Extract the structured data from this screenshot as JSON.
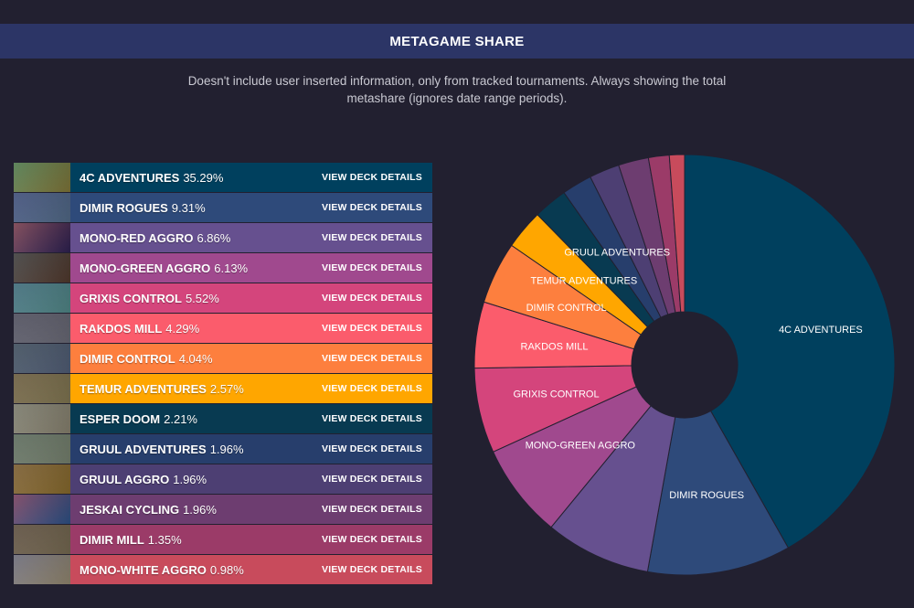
{
  "header": {
    "title": "METAGAME SHARE"
  },
  "subtitle": {
    "line1": "Doesn't include user inserted information, only from tracked tournaments. Always showing the total",
    "line2": "metashare (ignores date range periods)."
  },
  "view_label": "VIEW DECK DETAILS",
  "decks": [
    {
      "name": "4C ADVENTURES",
      "share": "35.29%",
      "color": "#00405e",
      "thumb": [
        "#3a6a3a",
        "#a89a4a"
      ]
    },
    {
      "name": "DIMIR ROGUES",
      "share": "9.31%",
      "color": "#2e4a7a",
      "thumb": [
        "#2a3a6a",
        "#6a8ab0"
      ]
    },
    {
      "name": "MONO-RED AGGRO",
      "share": "6.86%",
      "color": "#66508f",
      "thumb": [
        "#6a2a3a",
        "#3a2a6a"
      ]
    },
    {
      "name": "MONO-GREEN AGGRO",
      "share": "6.13%",
      "color": "#a0498e",
      "thumb": [
        "#2a2a2a",
        "#6a4a3a"
      ]
    },
    {
      "name": "GRIXIS CONTROL",
      "share": "5.52%",
      "color": "#d4457c",
      "thumb": [
        "#2a5a6a",
        "#6ab0b0"
      ]
    },
    {
      "name": "RAKDOS MILL",
      "share": "4.29%",
      "color": "#fb5c6c",
      "thumb": [
        "#3a3a4a",
        "#8a8a9a"
      ]
    },
    {
      "name": "DIMIR CONTROL",
      "share": "4.04%",
      "color": "#fd7f3e",
      "thumb": [
        "#2a3a4a",
        "#6a7a9a"
      ]
    },
    {
      "name": "TEMUR ADVENTURES",
      "share": "2.57%",
      "color": "#ffa600",
      "thumb": [
        "#5a4a2a",
        "#a89a6a"
      ]
    },
    {
      "name": "ESPER DOOM",
      "share": "2.21%",
      "color": "#083a51",
      "thumb": [
        "#6a6a5a",
        "#b0a890"
      ]
    },
    {
      "name": "GRUUL ADVENTURES",
      "share": "1.96%",
      "color": "#273e6c",
      "thumb": [
        "#4a5a4a",
        "#9aa890"
      ]
    },
    {
      "name": "GRUUL AGGRO",
      "share": "1.96%",
      "color": "#4d3f73",
      "thumb": [
        "#6a4a1a",
        "#b08a3a"
      ]
    },
    {
      "name": "JESKAI CYCLING",
      "share": "1.96%",
      "color": "#6d3d70",
      "thumb": [
        "#6a2a4a",
        "#3a6ab0"
      ]
    },
    {
      "name": "DIMIR MILL",
      "share": "1.35%",
      "color": "#9b3b68",
      "thumb": [
        "#4a3a2a",
        "#9a8a6a"
      ]
    },
    {
      "name": "MONO-WHITE AGGRO",
      "share": "0.98%",
      "color": "#c84b5c",
      "thumb": [
        "#5a5a6a",
        "#c0b090"
      ]
    }
  ],
  "chart_data": {
    "type": "pie",
    "title": "METAGAME SHARE",
    "donut": true,
    "start": "top",
    "direction": "clockwise",
    "categories": [
      "4C ADVENTURES",
      "DIMIR ROGUES",
      "MONO-RED AGGRO",
      "MONO-GREEN AGGRO",
      "GRIXIS CONTROL",
      "RAKDOS MILL",
      "DIMIR CONTROL",
      "TEMUR ADVENTURES",
      "ESPER DOOM",
      "GRUUL ADVENTURES",
      "GRUUL AGGRO",
      "JESKAI CYCLING",
      "DIMIR MILL",
      "MONO-WHITE AGGRO"
    ],
    "values": [
      35.29,
      9.31,
      6.86,
      6.13,
      5.52,
      4.29,
      4.04,
      2.57,
      2.21,
      1.96,
      1.96,
      1.96,
      1.35,
      0.98
    ],
    "colors": [
      "#00405e",
      "#2e4a7a",
      "#66508f",
      "#a0498e",
      "#d4457c",
      "#fb5c6c",
      "#fd7f3e",
      "#ffa600",
      "#083a51",
      "#273e6c",
      "#4d3f73",
      "#6d3d70",
      "#9b3b68",
      "#c84b5c"
    ],
    "slice_labels": [
      "4C ADVENTURES",
      "DIMIR ROGUES",
      "",
      "MONO-GREEN AGGRO",
      "GRIXIS CONTROL",
      "RAKDOS MILL",
      "DIMIR CONTROL",
      "TEMUR ADVENTURES",
      "",
      "GRUUL ADVENTURES",
      "",
      "",
      "",
      ""
    ]
  }
}
